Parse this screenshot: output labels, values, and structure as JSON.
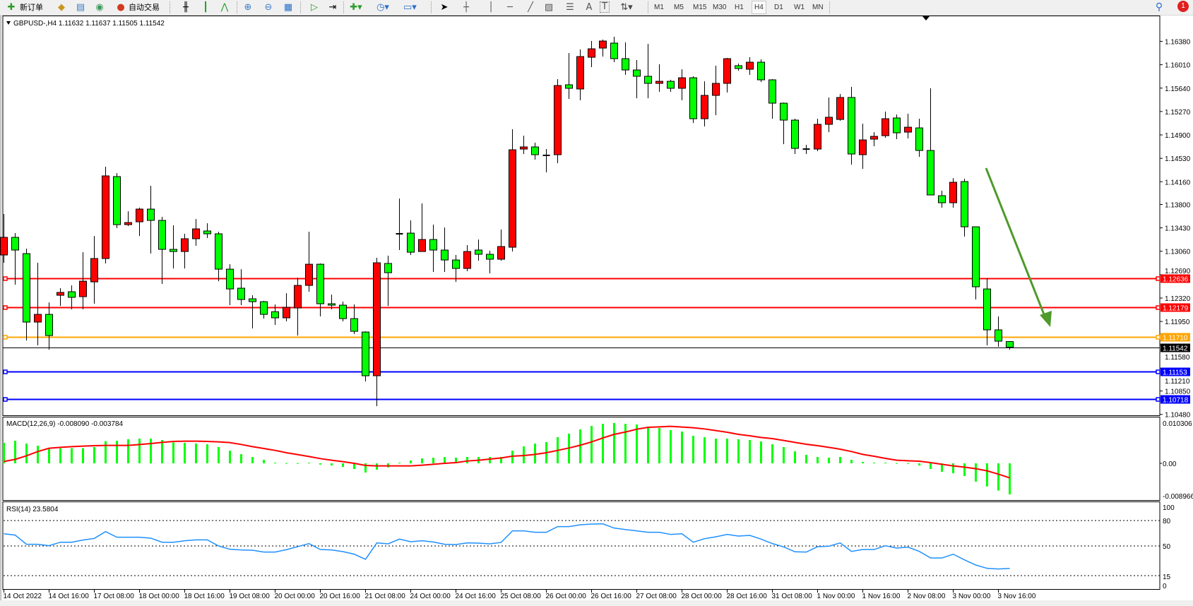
{
  "toolbar": {
    "new_order_label": "新订单",
    "auto_trading_label": "自动交易",
    "icons": [
      "new-order-icon",
      "market-watch-icon",
      "data-window-icon",
      "signals-icon",
      "auto-trading-icon",
      "bar-chart-icon",
      "candlestick-chart-icon",
      "line-chart-icon",
      "zoom-in-icon",
      "zoom-out-icon",
      "tile-windows-icon",
      "auto-scroll-icon",
      "chart-shift-icon",
      "indicators-icon",
      "periods-icon",
      "templates-icon",
      "cursor-icon",
      "crosshair-icon",
      "vertical-line-icon",
      "horizontal-line-icon",
      "trendline-icon",
      "fibonacci-channel-icon",
      "fibonacci-icon",
      "text-icon",
      "text-label-icon",
      "arrows-icon"
    ],
    "text_tool": "A",
    "label_tool": "T",
    "periods": [
      "M1",
      "M5",
      "M15",
      "M30",
      "H1",
      "H4",
      "D1",
      "W1",
      "MN"
    ],
    "active_period": "H4",
    "notification_count": "1"
  },
  "chart": {
    "header": "GBPUSD-,H4  1.11632 1.11637 1.11505 1.11542",
    "bull_color": "#ff0000",
    "bear_color": "#00ff00",
    "levels": [
      {
        "price": 1.12636,
        "label": "1.12636",
        "color": "#ff0000"
      },
      {
        "price": 1.12179,
        "label": "1.12179",
        "color": "#ff0000"
      },
      {
        "price": 1.1171,
        "label": "1.11710",
        "color": "#ffa500"
      },
      {
        "price": 1.11153,
        "label": "1.11153",
        "color": "#0000ff"
      },
      {
        "price": 1.10718,
        "label": "1.10718",
        "color": "#0000ff"
      }
    ],
    "bid": {
      "price": 1.11542,
      "label": "1.11542"
    },
    "arrow_color": "#4e9a2a"
  },
  "macd": {
    "header": "MACD(12,26,9) -0.008090 -0.003784",
    "axis_labels": [
      "0.010306",
      "0.00",
      "-0.008966"
    ]
  },
  "rsi": {
    "header": "RSI(14) 23.5804",
    "axis_labels": [
      "100",
      "80",
      "50",
      "15",
      "0"
    ]
  },
  "chart_data": [
    {
      "type": "candlestick",
      "title": "GBPUSD-,H4",
      "ylim": [
        1.1048,
        1.165
      ],
      "y_ticks": [
        "1.16380",
        "1.16010",
        "1.15640",
        "1.15270",
        "1.14900",
        "1.14530",
        "1.14160",
        "1.13800",
        "1.13430",
        "1.13060",
        "1.12690",
        "1.12320",
        "1.11950",
        "1.11580",
        "1.11210",
        "1.10850",
        "1.10480"
      ],
      "time_labels": [
        "14 Oct 2022",
        "14 Oct 16:00",
        "17 Oct 08:00",
        "18 Oct 00:00",
        "18 Oct 16:00",
        "19 Oct 08:00",
        "20 Oct 00:00",
        "20 Oct 16:00",
        "21 Oct 08:00",
        "24 Oct 00:00",
        "24 Oct 16:00",
        "25 Oct 08:00",
        "26 Oct 00:00",
        "26 Oct 16:00",
        "27 Oct 08:00",
        "28 Oct 00:00",
        "28 Oct 16:00",
        "31 Oct 08:00",
        "1 Nov 00:00",
        "1 Nov 16:00",
        "2 Nov 08:00",
        "3 Nov 00:00",
        "3 Nov 16:00"
      ],
      "ohlc": [
        [
          1.13001,
          1.13649,
          1.12878,
          1.1328
        ],
        [
          1.1328,
          1.13347,
          1.12532,
          1.13079
        ],
        [
          1.13023,
          1.13101,
          1.11649,
          1.1194
        ],
        [
          1.1194,
          1.12878,
          1.11571,
          1.12062
        ],
        [
          1.12062,
          1.12252,
          1.11504,
          1.11727
        ],
        [
          1.12364,
          1.12476,
          1.12196,
          1.12409
        ],
        [
          1.1242,
          1.1252,
          1.12141,
          1.12331
        ],
        [
          1.12342,
          1.13045,
          1.12141,
          1.12587
        ],
        [
          1.12576,
          1.13302,
          1.1223,
          1.12945
        ],
        [
          1.12945,
          1.14397,
          1.12867,
          1.14252
        ],
        [
          1.14241,
          1.14296,
          1.13425,
          1.13481
        ],
        [
          1.13481,
          1.13693,
          1.13459,
          1.13514
        ],
        [
          1.13526,
          1.13749,
          1.13302,
          1.13727
        ],
        [
          1.13727,
          1.14095,
          1.13023,
          1.13548
        ],
        [
          1.13548,
          1.13604,
          1.12543,
          1.1309
        ],
        [
          1.1309,
          1.1347,
          1.12788,
          1.13056
        ],
        [
          1.13056,
          1.13336,
          1.12788,
          1.13258
        ],
        [
          1.13258,
          1.1357,
          1.13146,
          1.13414
        ],
        [
          1.13381,
          1.13503,
          1.13269,
          1.13336
        ],
        [
          1.13336,
          1.13369,
          1.12587,
          1.12777
        ],
        [
          1.12777,
          1.12855,
          1.12208,
          1.12464
        ],
        [
          1.12476,
          1.12777,
          1.12208,
          1.12297
        ],
        [
          1.12308,
          1.12364,
          1.11839,
          1.12263
        ],
        [
          1.12263,
          1.12275,
          1.11995,
          1.12062
        ],
        [
          1.12104,
          1.12219,
          1.11895,
          1.12007
        ],
        [
          1.12007,
          1.12397,
          1.11951,
          1.12174
        ],
        [
          1.12163,
          1.12643,
          1.11727,
          1.1252
        ],
        [
          1.1252,
          1.13369,
          1.1242,
          1.12855
        ],
        [
          1.12855,
          1.12867,
          1.12029,
          1.1223
        ],
        [
          1.1223,
          1.12375,
          1.12141,
          1.12208
        ],
        [
          1.12208,
          1.12263,
          1.11951,
          1.11995
        ],
        [
          1.11995,
          1.12219,
          1.1175,
          1.11794
        ],
        [
          1.11783,
          1.11794,
          1.11001,
          1.11091
        ],
        [
          1.11091,
          1.12956,
          1.1061,
          1.12878
        ],
        [
          1.12867,
          1.1299,
          1.12196,
          1.12721
        ],
        [
          1.13336,
          1.13894,
          1.13079,
          1.13336
        ],
        [
          1.13347,
          1.13548,
          1.13001,
          1.13045
        ],
        [
          1.13056,
          1.13816,
          1.13056,
          1.13246
        ],
        [
          1.13246,
          1.13481,
          1.12733,
          1.13079
        ],
        [
          1.13079,
          1.13436,
          1.12733,
          1.12922
        ],
        [
          1.12922,
          1.13001,
          1.12576,
          1.12788
        ],
        [
          1.12788,
          1.13157,
          1.12744,
          1.13056
        ],
        [
          1.13079,
          1.13246,
          1.12911,
          1.13012
        ],
        [
          1.13012,
          1.13068,
          1.1271,
          1.12934
        ],
        [
          1.12934,
          1.13403,
          1.12911,
          1.13135
        ],
        [
          1.13124,
          1.14989,
          1.13056,
          1.14665
        ],
        [
          1.14676,
          1.14888,
          1.14598,
          1.1471
        ],
        [
          1.1471,
          1.14777,
          1.14509,
          1.14587
        ],
        [
          1.14576,
          1.14676,
          1.14308,
          1.14576
        ],
        [
          1.14587,
          1.15782,
          1.14453,
          1.15681
        ],
        [
          1.15693,
          1.16195,
          1.15469,
          1.15637
        ],
        [
          1.15626,
          1.16251,
          1.15447,
          1.16139
        ],
        [
          1.16128,
          1.16385,
          1.15972,
          1.16262
        ],
        [
          1.16273,
          1.16408,
          1.16139,
          1.16385
        ],
        [
          1.16352,
          1.16452,
          1.1605,
          1.16106
        ],
        [
          1.16106,
          1.16363,
          1.15849,
          1.15927
        ],
        [
          1.15927,
          1.16084,
          1.1548,
          1.15827
        ],
        [
          1.15827,
          1.1634,
          1.1548,
          1.15715
        ],
        [
          1.15715,
          1.16017,
          1.15581,
          1.15748
        ],
        [
          1.15748,
          1.15771,
          1.15581,
          1.15637
        ],
        [
          1.15637,
          1.15938,
          1.15447,
          1.15804
        ],
        [
          1.15804,
          1.15827,
          1.15089,
          1.15156
        ],
        [
          1.15156,
          1.15748,
          1.15034,
          1.15525
        ],
        [
          1.15525,
          1.15995,
          1.15212,
          1.15715
        ],
        [
          1.15715,
          1.16117,
          1.1557,
          1.16106
        ],
        [
          1.15995,
          1.16028,
          1.15916,
          1.1595
        ],
        [
          1.15938,
          1.16128,
          1.15849,
          1.1605
        ],
        [
          1.1605,
          1.16095,
          1.15737,
          1.15771
        ],
        [
          1.15771,
          1.15782,
          1.15156,
          1.15402
        ],
        [
          1.15402,
          1.15413,
          1.14754,
          1.15134
        ],
        [
          1.15134,
          1.15156,
          1.14598,
          1.14687
        ],
        [
          1.14676,
          1.14743,
          1.14598,
          1.14676
        ],
        [
          1.14676,
          1.15156,
          1.14643,
          1.15067
        ],
        [
          1.15067,
          1.15492,
          1.14944,
          1.15179
        ],
        [
          1.15145,
          1.15547,
          1.15123,
          1.15492
        ],
        [
          1.15492,
          1.15659,
          1.1443,
          1.14598
        ],
        [
          1.14587,
          1.15078,
          1.14363,
          1.14821
        ],
        [
          1.14833,
          1.14944,
          1.14721,
          1.14877
        ],
        [
          1.14888,
          1.15268,
          1.14855,
          1.15156
        ],
        [
          1.15168,
          1.15223,
          1.14833,
          1.14933
        ],
        [
          1.14944,
          1.15235,
          1.14844,
          1.15022
        ],
        [
          1.15011,
          1.15156,
          1.14553,
          1.14654
        ],
        [
          1.14654,
          1.15637,
          1.1395,
          1.1395
        ],
        [
          1.13939,
          1.14017,
          1.13749,
          1.13827
        ],
        [
          1.13827,
          1.14218,
          1.13749,
          1.14151
        ],
        [
          1.14162,
          1.14207,
          1.13291,
          1.13447
        ],
        [
          1.13447,
          1.13447,
          1.12297,
          1.12498
        ],
        [
          1.12464,
          1.12632,
          1.11571,
          1.11817
        ],
        [
          1.11817,
          1.12029,
          1.11549,
          1.11638
        ],
        [
          1.11632,
          1.11637,
          1.11505,
          1.11542
        ]
      ]
    },
    {
      "type": "bar",
      "title": "MACD(12,26,9)",
      "ylim": [
        -0.008966,
        0.010306
      ],
      "histogram": [
        0.00534,
        0.00589,
        0.00515,
        0.0046,
        0.00393,
        0.00393,
        0.00393,
        0.00393,
        0.00423,
        0.00577,
        0.00589,
        0.00626,
        0.00644,
        0.00644,
        0.00607,
        0.00546,
        0.00534,
        0.00515,
        0.00497,
        0.00423,
        0.00331,
        0.00239,
        0.00166,
        0.00092,
        0.00018,
        5e-05,
        5e-05,
        0.00018,
        -0.00031,
        -0.00055,
        -0.00092,
        -0.00147,
        -0.00239,
        -0.00166,
        -0.00104,
        0.00018,
        0.00074,
        0.00129,
        0.00147,
        0.00166,
        0.00147,
        0.00166,
        0.00166,
        0.00166,
        0.00166,
        0.00331,
        0.00442,
        0.00515,
        0.00552,
        0.00681,
        0.00773,
        0.00883,
        0.00975,
        0.0103,
        0.01049,
        0.0103,
        0.01012,
        0.00957,
        0.0092,
        0.00865,
        0.00828,
        0.00718,
        0.00681,
        0.00644,
        0.00644,
        0.00626,
        0.00607,
        0.0057,
        0.00497,
        0.00423,
        0.00313,
        0.00221,
        0.00166,
        0.00147,
        0.00166,
        0.00092,
        0.00037,
        0.00018,
        0.00018,
        5e-05,
        2e-05,
        -0.00055,
        -0.00147,
        -0.00221,
        -0.00258,
        -0.00331,
        -0.00478,
        -0.006,
        -0.0071,
        -0.00809
      ],
      "signal": [
        0.00049,
        0.00104,
        0.00196,
        0.00307,
        0.00393,
        0.00417,
        0.00435,
        0.00448,
        0.0046,
        0.00466,
        0.00466,
        0.00466,
        0.00491,
        0.00515,
        0.00546,
        0.0057,
        0.00577,
        0.00577,
        0.0057,
        0.00558,
        0.0054,
        0.00491,
        0.00435,
        0.00386,
        0.00337,
        0.00276,
        0.00227,
        0.00178,
        0.00123,
        0.0008,
        0.00043,
        0.0,
        -0.00055,
        -0.00067,
        -0.00067,
        -0.00067,
        -0.00067,
        -0.00049,
        -0.00025,
        0.0,
        0.00018,
        0.00061,
        0.0008,
        0.0011,
        0.00141,
        0.00187,
        0.00202,
        0.00233,
        0.00276,
        0.00337,
        0.00399,
        0.00472,
        0.00558,
        0.00662,
        0.00754,
        0.00816,
        0.00889,
        0.00938,
        0.00951,
        0.00963,
        0.00945,
        0.00926,
        0.00896,
        0.00853,
        0.0081,
        0.00754,
        0.00718,
        0.00675,
        0.00644,
        0.00595,
        0.00546,
        0.00497,
        0.0046,
        0.00417,
        0.00368,
        0.00307,
        0.00233,
        0.00184,
        0.00129,
        0.0008,
        0.00067,
        0.00055,
        0.00018,
        -0.00025,
        -0.00067,
        -0.00098,
        -0.00141,
        -0.00196,
        -0.00282,
        -0.00378
      ]
    },
    {
      "type": "line",
      "title": "RSI(14)",
      "ylim": [
        0,
        100
      ],
      "levels": [
        80,
        50,
        15
      ],
      "values": [
        64.4,
        62.8,
        52,
        52,
        50.3,
        54.4,
        54.4,
        57,
        58.9,
        67,
        60.3,
        60.3,
        60.3,
        59.2,
        54.4,
        54.4,
        56.1,
        57.2,
        57.2,
        50,
        46.1,
        45.3,
        45,
        42.8,
        42.8,
        45.6,
        49.2,
        52.8,
        45.8,
        45.3,
        43.3,
        40.3,
        34.2,
        53.6,
        52.5,
        58.1,
        55,
        56.1,
        54.7,
        52,
        51.7,
        53.6,
        53.3,
        52.5,
        54.2,
        67.8,
        67.8,
        66.1,
        66.1,
        72.8,
        72.8,
        75,
        75.8,
        76.1,
        71.1,
        69.4,
        67.8,
        66.1,
        66.1,
        63.6,
        64.4,
        54.4,
        58.6,
        60.8,
        63.6,
        61.7,
        62.5,
        58.1,
        52.8,
        48.9,
        43.1,
        42.8,
        49.2,
        49.7,
        53.6,
        43.6,
        45.8,
        45.8,
        50.3,
        47.5,
        48.6,
        43.6,
        35.8,
        35.8,
        40.3,
        33.6,
        27.5,
        23.6,
        22.8,
        23.58
      ],
      "line_color": "#1e90ff"
    }
  ]
}
